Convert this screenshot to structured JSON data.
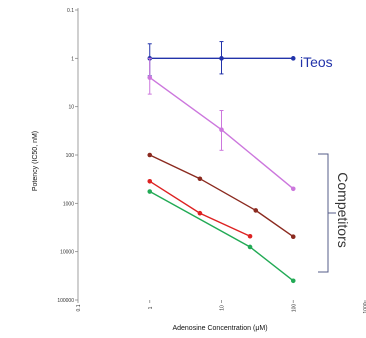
{
  "chart_data": {
    "type": "scatter",
    "title": "",
    "xlabel": "Adenosine Concentration (μM)",
    "ylabel": "Potency (IC50, nM)",
    "x_scale": "log",
    "y_scale": "log",
    "y_reversed": true,
    "xlim": [
      0.1,
      1000
    ],
    "ylim": [
      0.1,
      100000
    ],
    "x_ticks": [
      {
        "value": 0.1,
        "label": "0.1"
      },
      {
        "value": 1,
        "label": "1"
      },
      {
        "value": 10,
        "label": "10"
      },
      {
        "value": 100,
        "label": "100"
      },
      {
        "value": 1000,
        "label": "1000"
      }
    ],
    "y_ticks": [
      {
        "value": 0.1,
        "label": "0.1"
      },
      {
        "value": 1,
        "label": "1"
      },
      {
        "value": 10,
        "label": "10"
      },
      {
        "value": 100,
        "label": "100"
      },
      {
        "value": 1000,
        "label": "1000"
      },
      {
        "value": 10000,
        "label": "10000"
      },
      {
        "value": 100000,
        "label": "100000"
      }
    ],
    "grid": false,
    "series": [
      {
        "name": "iTeos",
        "color": "#2233aa",
        "x": [
          1,
          10,
          100
        ],
        "y": [
          1,
          1,
          1
        ],
        "y_err_low": [
          0.5,
          0.45,
          0
        ],
        "y_err_high": [
          2.3,
          2.1,
          0
        ]
      },
      {
        "name": "",
        "color": "#cc77dd",
        "x": [
          1,
          10,
          100
        ],
        "y": [
          2.5,
          30,
          500
        ],
        "y_err_low": [
          1,
          12,
          0
        ],
        "y_err_high": [
          5.5,
          80,
          0
        ]
      },
      {
        "name": "",
        "color": "#8b2a1f",
        "x": [
          1,
          5,
          30,
          100
        ],
        "y": [
          100,
          310,
          1400,
          4900
        ],
        "y_err_low": [
          0,
          0,
          0,
          0
        ],
        "y_err_high": [
          0,
          0,
          0,
          0
        ]
      },
      {
        "name": "",
        "color": "#dd2222",
        "x": [
          1,
          5,
          25
        ],
        "y": [
          350,
          1600,
          4800
        ],
        "y_err_low": [
          0,
          0,
          0
        ],
        "y_err_high": [
          0,
          0,
          0
        ]
      },
      {
        "name": "",
        "color": "#22aa55",
        "x": [
          1,
          25,
          100
        ],
        "y": [
          570,
          8000,
          40000
        ],
        "y_err_low": [
          0,
          0,
          0
        ],
        "y_err_high": [
          0,
          0,
          0
        ]
      }
    ],
    "annotations": [
      {
        "text": "iTeos",
        "color": "#2233aa"
      },
      {
        "text": "Competitors",
        "color": "#333333"
      }
    ]
  }
}
